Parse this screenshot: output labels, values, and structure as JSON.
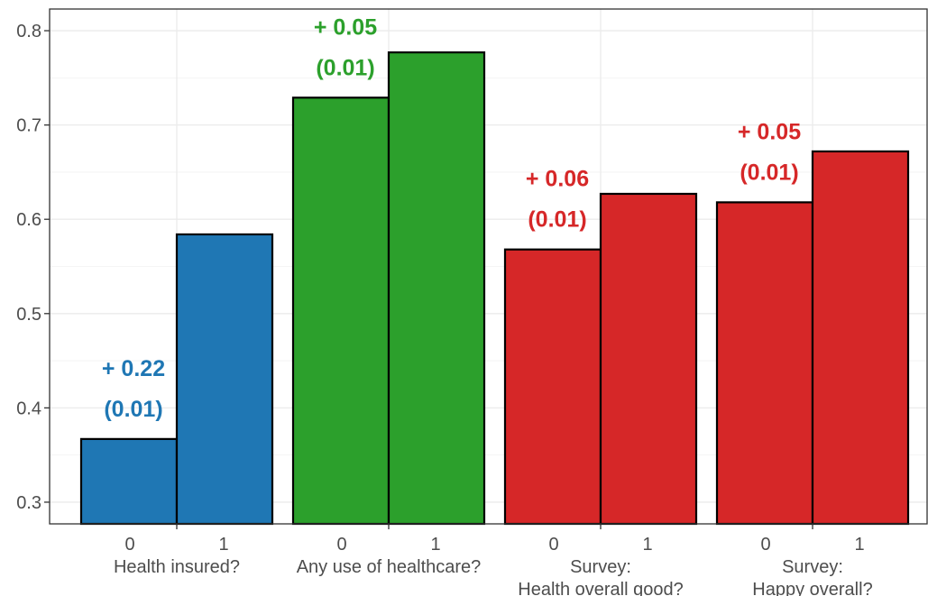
{
  "chart_data": {
    "type": "bar",
    "title": "",
    "xlabel": "",
    "ylabel": "",
    "ylim": [
      0.277,
      0.823
    ],
    "y_ticks": [
      "0.3",
      "0.4",
      "0.5",
      "0.6",
      "0.7",
      "0.8"
    ],
    "grid": true,
    "legend": "none",
    "groups": [
      {
        "label_lines": [
          "Health insured?"
        ],
        "bar_labels": [
          "0",
          "1"
        ],
        "values": [
          0.367,
          0.584
        ],
        "color": "#1f77b4",
        "annotation": [
          "+ 0.22",
          "(0.01)"
        ]
      },
      {
        "label_lines": [
          "Any use of healthcare?"
        ],
        "bar_labels": [
          "0",
          "1"
        ],
        "values": [
          0.729,
          0.777
        ],
        "color": "#2ca02c",
        "annotation": [
          "+ 0.05",
          "(0.01)"
        ]
      },
      {
        "label_lines": [
          "Survey:",
          "Health overall good?"
        ],
        "bar_labels": [
          "0",
          "1"
        ],
        "values": [
          0.568,
          0.627
        ],
        "color": "#d62728",
        "annotation": [
          "+ 0.06",
          "(0.01)"
        ]
      },
      {
        "label_lines": [
          "Survey:",
          "Happy overall?"
        ],
        "bar_labels": [
          "0",
          "1"
        ],
        "values": [
          0.618,
          0.672
        ],
        "color": "#d62728",
        "annotation": [
          "+ 0.05",
          "(0.01)"
        ]
      }
    ]
  }
}
